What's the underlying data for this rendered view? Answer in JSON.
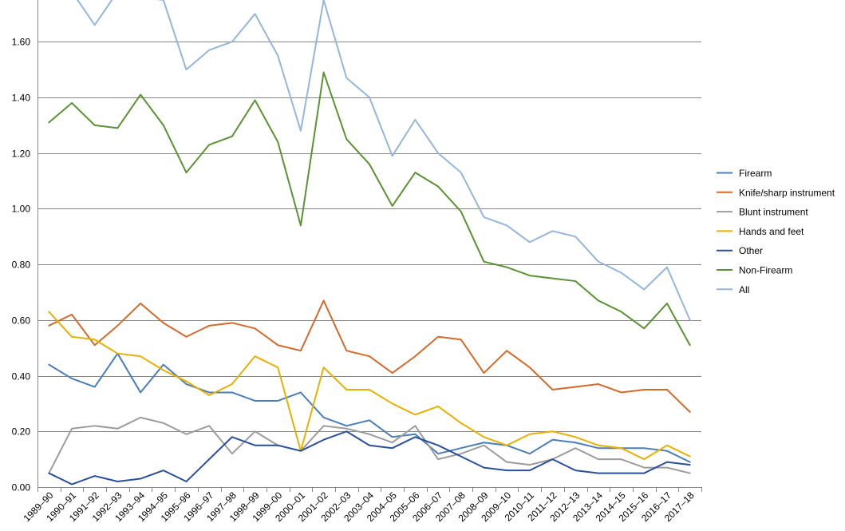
{
  "chart_data": {
    "type": "line",
    "title": "",
    "xlabel": "",
    "ylabel": "",
    "ylim": [
      0,
      1.75
    ],
    "yticks": [
      "0.00",
      "0.20",
      "0.40",
      "0.60",
      "0.80",
      "1.00",
      "1.20",
      "1.40",
      "1.60"
    ],
    "grid": true,
    "legend_position": "right",
    "categories": [
      "1989–90",
      "1990–91",
      "1991–92",
      "1992–93",
      "1993–94",
      "1994–95",
      "1995–96",
      "1996–97",
      "1997–98",
      "1998–99",
      "1999–00",
      "2000–01",
      "2001–02",
      "2002–03",
      "2003–04",
      "2004–05",
      "2005–06",
      "2006–07",
      "2007–08",
      "2008–09",
      "2009–10",
      "2010–11",
      "2011–12",
      "2012–13",
      "2013–14",
      "2014–15",
      "2015–16",
      "2016–17",
      "2017–18"
    ],
    "series": [
      {
        "name": "Firearm",
        "color": "#4a7ebb",
        "values": [
          0.44,
          0.39,
          0.36,
          0.48,
          0.34,
          0.44,
          0.37,
          0.34,
          0.34,
          0.31,
          0.31,
          0.34,
          0.25,
          0.22,
          0.24,
          0.18,
          0.19,
          0.12,
          0.14,
          0.16,
          0.15,
          0.12,
          0.17,
          0.16,
          0.14,
          0.14,
          0.14,
          0.13,
          0.09
        ]
      },
      {
        "name": "Knife/sharp instrument",
        "color": "#d46a2a",
        "values": [
          0.58,
          0.62,
          0.51,
          0.58,
          0.66,
          0.59,
          0.54,
          0.58,
          0.59,
          0.57,
          0.51,
          0.49,
          0.67,
          0.49,
          0.47,
          0.41,
          0.47,
          0.54,
          0.53,
          0.41,
          0.49,
          0.43,
          0.35,
          0.36,
          0.37,
          0.34,
          0.35,
          0.35,
          0.27
        ]
      },
      {
        "name": "Blunt instrument",
        "color": "#9c9c9c",
        "values": [
          0.05,
          0.21,
          0.22,
          0.21,
          0.25,
          0.23,
          0.19,
          0.22,
          0.12,
          0.2,
          0.15,
          0.13,
          0.22,
          0.21,
          0.19,
          0.16,
          0.22,
          0.1,
          0.12,
          0.15,
          0.09,
          0.08,
          0.1,
          0.14,
          0.1,
          0.1,
          0.07,
          0.07,
          0.05
        ]
      },
      {
        "name": "Hands and feet",
        "color": "#e8b000",
        "values": [
          0.63,
          0.54,
          0.53,
          0.48,
          0.47,
          0.42,
          0.38,
          0.33,
          0.37,
          0.47,
          0.43,
          0.13,
          0.43,
          0.35,
          0.35,
          0.3,
          0.26,
          0.29,
          0.23,
          0.18,
          0.15,
          0.19,
          0.2,
          0.18,
          0.15,
          0.14,
          0.1,
          0.15,
          0.11
        ]
      },
      {
        "name": "Other",
        "color": "#2a4f9e",
        "values": [
          0.05,
          0.01,
          0.04,
          0.02,
          0.03,
          0.06,
          0.02,
          0.1,
          0.18,
          0.15,
          0.15,
          0.13,
          0.17,
          0.2,
          0.15,
          0.14,
          0.18,
          0.15,
          0.11,
          0.07,
          0.06,
          0.06,
          0.1,
          0.06,
          0.05,
          0.05,
          0.05,
          0.09,
          0.08
        ]
      },
      {
        "name": "Non-Firearm",
        "color": "#5a9332",
        "values": [
          1.31,
          1.38,
          1.3,
          1.29,
          1.41,
          1.3,
          1.13,
          1.23,
          1.26,
          1.39,
          1.24,
          0.94,
          1.49,
          1.25,
          1.16,
          1.01,
          1.13,
          1.08,
          0.99,
          0.81,
          0.79,
          0.76,
          0.75,
          0.74,
          0.67,
          0.63,
          0.57,
          0.66,
          0.51
        ]
      },
      {
        "name": "All",
        "color": "#95b6dc",
        "values": [
          1.76,
          1.78,
          1.66,
          1.78,
          1.76,
          1.75,
          1.5,
          1.57,
          1.6,
          1.7,
          1.55,
          1.28,
          1.75,
          1.47,
          1.4,
          1.19,
          1.32,
          1.2,
          1.13,
          0.97,
          0.94,
          0.88,
          0.92,
          0.9,
          0.81,
          0.77,
          0.71,
          0.79,
          0.6
        ]
      }
    ]
  }
}
